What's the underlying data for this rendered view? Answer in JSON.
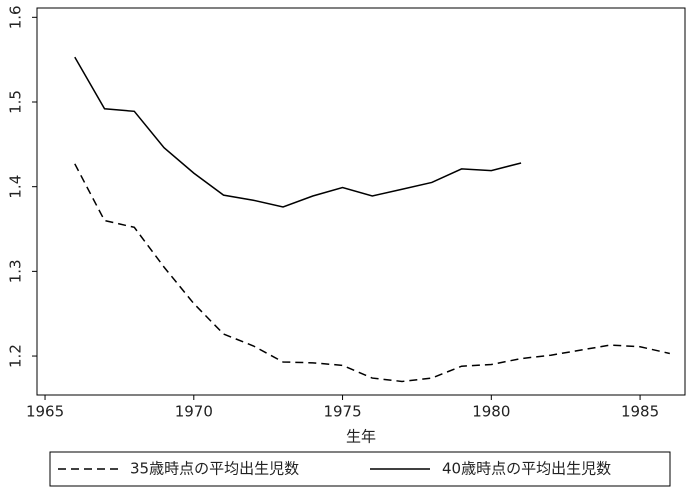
{
  "chart_data": {
    "type": "line",
    "x_label": "生年",
    "x": [
      1966,
      1967,
      1968,
      1969,
      1970,
      1971,
      1972,
      1973,
      1974,
      1975,
      1976,
      1977,
      1978,
      1979,
      1980,
      1981,
      1982,
      1983,
      1984,
      1985,
      1986
    ],
    "series": [
      {
        "name": "35歳時点の平均出生児数",
        "color": "#000000",
        "dash": "dashed",
        "values": [
          1.427,
          1.36,
          1.352,
          1.305,
          1.262,
          1.226,
          1.212,
          1.193,
          1.192,
          1.189,
          1.174,
          1.17,
          1.174,
          1.188,
          1.19,
          1.197,
          1.201,
          1.207,
          1.213,
          1.211,
          1.203
        ]
      },
      {
        "name": "40歳時点の平均出生児数",
        "color": "#000000",
        "dash": "solid",
        "values": [
          1.553,
          1.492,
          1.489,
          1.446,
          1.416,
          1.39,
          1.384,
          1.376,
          1.389,
          1.399,
          1.389,
          1.397,
          1.405,
          1.421,
          1.419,
          1.428,
          null,
          null,
          null,
          null,
          null
        ]
      }
    ],
    "xlim": [
      1964.73,
      1986.51
    ],
    "xticks": [
      1965,
      1970,
      1975,
      1980,
      1985
    ],
    "ylim": [
      1.154,
      1.611
    ],
    "yticks": [
      1.2,
      1.3,
      1.4,
      1.5,
      1.6
    ]
  }
}
